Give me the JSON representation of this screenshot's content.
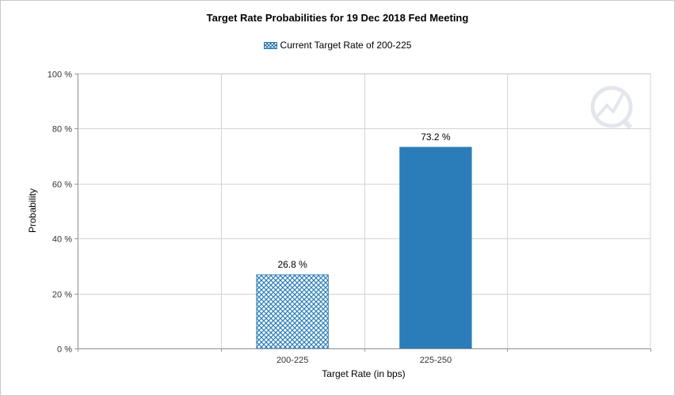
{
  "chart_data": {
    "type": "bar",
    "title": "Target Rate Probabilities for 19 Dec 2018 Fed Meeting",
    "legend": {
      "label": "Current Target Rate of 200-225",
      "placement": "top-center"
    },
    "categories": [
      "200-225",
      "225-250"
    ],
    "values": [
      26.8,
      73.2
    ],
    "data_labels": [
      "26.8 %",
      "73.2 %"
    ],
    "highlighted_category": "200-225",
    "xlabel": "Target Rate (in bps)",
    "ylabel": "Probability",
    "ylim": [
      0,
      100
    ],
    "yticks": [
      0,
      20,
      40,
      60,
      80,
      100
    ],
    "ytick_labels": [
      "0 %",
      "20 %",
      "40 %",
      "60 %",
      "80 %",
      "100 %"
    ],
    "grid": true
  },
  "colors": {
    "bar": "#2a7db8",
    "hatch_bg": "#ffffff",
    "grid": "#d4d4d4",
    "axis": "#9a9a9a"
  },
  "watermark_icon": "quikstrike-logo-icon"
}
